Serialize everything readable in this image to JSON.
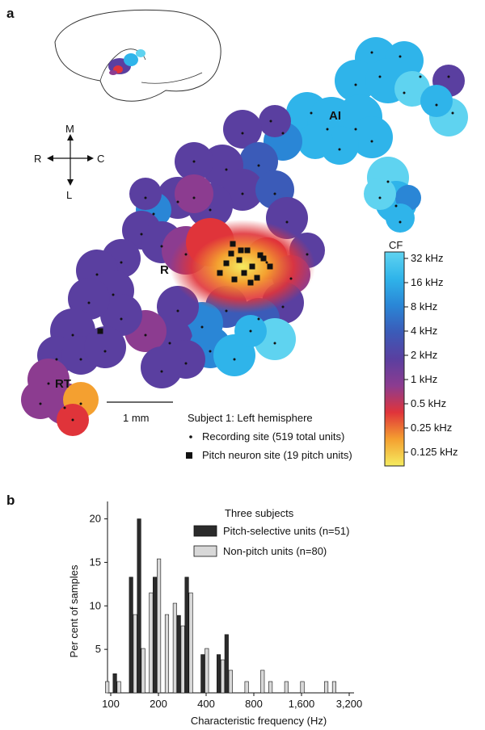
{
  "panel_a": {
    "label": "a",
    "orientation": {
      "up": "M",
      "down": "L",
      "left": "R",
      "right": "C"
    },
    "area_labels": {
      "ai": "AI",
      "r": "R",
      "rt": "RT"
    },
    "scale_bar_label": "1 mm",
    "legend": {
      "title": "Subject 1: Left hemisphere",
      "recording_site": "Recording site (519 total units)",
      "pitch_site": "Pitch neuron site (19 pitch units)"
    },
    "colorbar": {
      "title": "CF",
      "ticks": [
        "32 kHz",
        "16 kHz",
        "8 kHz",
        "4 kHz",
        "2 kHz",
        "1 kHz",
        "0.5 kHz",
        "0.25 kHz",
        "0.125 kHz"
      ],
      "colors": [
        "#5fd3f0",
        "#2fb4ea",
        "#2a86d6",
        "#3b5bb8",
        "#5a3fa0",
        "#8c3c90",
        "#e0343a",
        "#f4a030",
        "#f5ec60"
      ]
    }
  },
  "panel_b": {
    "label": "b",
    "colors": {
      "pitch": "#2b2b2b",
      "nonpitch": "#d8d8d8"
    }
  },
  "chart_data": {
    "type": "bar",
    "title": "Three subjects",
    "xlabel": "Characteristic frequency (Hz)",
    "ylabel": "Per cent of samples",
    "xscale": "log",
    "xlim": [
      100,
      3200
    ],
    "ylim": [
      0,
      22
    ],
    "xticks": [
      100,
      200,
      400,
      800,
      1600,
      3200
    ],
    "xtick_labels": [
      "100",
      "200",
      "400",
      "800",
      "1,600",
      "3,200"
    ],
    "yticks": [
      5,
      10,
      15,
      20
    ],
    "legend": "top-right",
    "grid": false,
    "bin_centers": [
      92,
      109,
      122,
      138,
      155,
      174,
      195,
      219,
      246,
      276,
      310,
      348,
      391,
      439,
      493,
      553,
      621,
      698,
      783,
      879,
      987,
      1108,
      1244,
      1397,
      1568,
      1760,
      1976,
      2219,
      2491,
      2797
    ],
    "series": [
      {
        "name": "Pitch-selective units (n=51)",
        "values": [
          0,
          2.2,
          0,
          13.3,
          20,
          0,
          13.3,
          0,
          0,
          8.9,
          13.3,
          0,
          4.4,
          0,
          4.4,
          6.7,
          0,
          0,
          0,
          0,
          0,
          0,
          0,
          0,
          0,
          0,
          0,
          0,
          0,
          0
        ]
      },
      {
        "name": "Non-pitch units (n=80)",
        "values": [
          1.3,
          1.3,
          0,
          9,
          5.1,
          11.5,
          15.4,
          9,
          10.3,
          7.7,
          11.5,
          0,
          5.1,
          0,
          3.8,
          2.6,
          0,
          1.3,
          0,
          2.6,
          1.3,
          0,
          1.3,
          0,
          1.3,
          0,
          0,
          1.3,
          1.3,
          0
        ]
      }
    ]
  }
}
